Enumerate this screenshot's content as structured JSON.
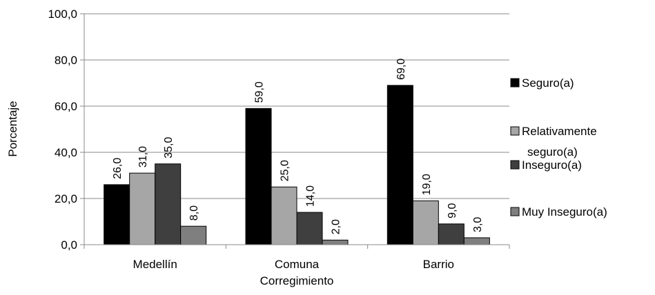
{
  "chart_data": {
    "type": "bar",
    "ylabel": "Porcentaje",
    "ylim": [
      0,
      100
    ],
    "ytick_labels": [
      "0,0",
      "20,0",
      "40,0",
      "60,0",
      "80,0",
      "100,0"
    ],
    "ytick_values": [
      0,
      20,
      40,
      60,
      80,
      100
    ],
    "grid": true,
    "legend_position": "right",
    "categories": [
      {
        "lines": [
          "Medellín"
        ]
      },
      {
        "lines": [
          "Comuna",
          "Corregimiento"
        ]
      },
      {
        "lines": [
          "Barrio"
        ]
      }
    ],
    "series": [
      {
        "name": "Seguro(a)",
        "legend_lines": [
          "Seguro(a)"
        ],
        "color": "#000000",
        "values": [
          26.0,
          59.0,
          69.0
        ],
        "labels": [
          "26,0",
          "59,0",
          "69,0"
        ]
      },
      {
        "name": "Relativamente seguro(a)",
        "legend_lines": [
          "Relativamente",
          "seguro(a)"
        ],
        "color": "#a6a6a6",
        "values": [
          31.0,
          25.0,
          19.0
        ],
        "labels": [
          "31,0",
          "25,0",
          "19,0"
        ]
      },
      {
        "name": "Inseguro(a)",
        "legend_lines": [
          "Inseguro(a)"
        ],
        "color": "#3f3f3f",
        "values": [
          35.0,
          14.0,
          9.0
        ],
        "labels": [
          "35,0",
          "14,0",
          "9,0"
        ]
      },
      {
        "name": "Muy Inseguro(a)",
        "legend_lines": [
          "Muy Inseguro(a)"
        ],
        "color": "#7f7f7f",
        "values": [
          8.0,
          2.0,
          3.0
        ],
        "labels": [
          "8,0",
          "2,0",
          "3,0"
        ]
      }
    ]
  }
}
